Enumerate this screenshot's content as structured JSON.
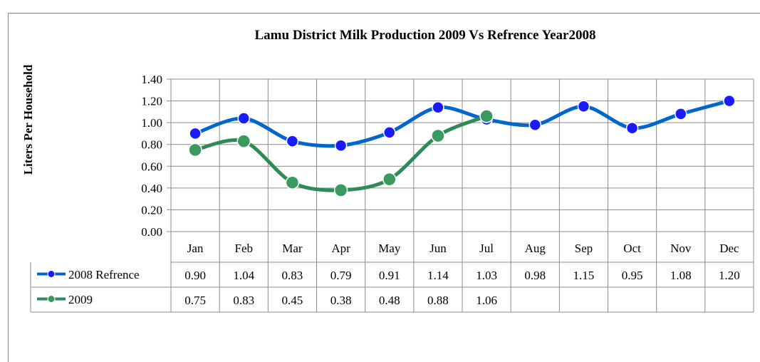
{
  "chart_data": {
    "type": "line",
    "title": "Lamu District Milk Production 2009 Vs Refrence Year2008",
    "ylabel": "Liters Per Household",
    "xlabel": "",
    "categories": [
      "Jan",
      "Feb",
      "Mar",
      "Apr",
      "May",
      "Jun",
      "Jul",
      "Aug",
      "Sep",
      "Oct",
      "Nov",
      "Dec"
    ],
    "ylim": [
      0,
      1.4
    ],
    "yticks": [
      "0.00",
      "0.20",
      "0.40",
      "0.60",
      "0.80",
      "1.00",
      "1.20",
      "1.40"
    ],
    "grid": true,
    "data_table": true,
    "series": [
      {
        "name": "2008 Refrence",
        "color": "#0066cc",
        "marker_color": "#1a1aff",
        "values": [
          0.9,
          1.04,
          0.83,
          0.79,
          0.91,
          1.14,
          1.03,
          0.98,
          1.15,
          0.95,
          1.08,
          1.2
        ],
        "labels": [
          "0.90",
          "1.04",
          "0.83",
          "0.79",
          "0.91",
          "1.14",
          "1.03",
          "0.98",
          "1.15",
          "0.95",
          "1.08",
          "1.20"
        ]
      },
      {
        "name": "2009",
        "color": "#2e8b57",
        "marker_color": "#3a9a5e",
        "values": [
          0.75,
          0.83,
          0.45,
          0.38,
          0.48,
          0.88,
          1.06,
          null,
          null,
          null,
          null,
          null
        ],
        "labels": [
          "0.75",
          "0.83",
          "0.45",
          "0.38",
          "0.48",
          "0.88",
          "1.06",
          "",
          "",
          "",
          "",
          ""
        ]
      }
    ]
  }
}
